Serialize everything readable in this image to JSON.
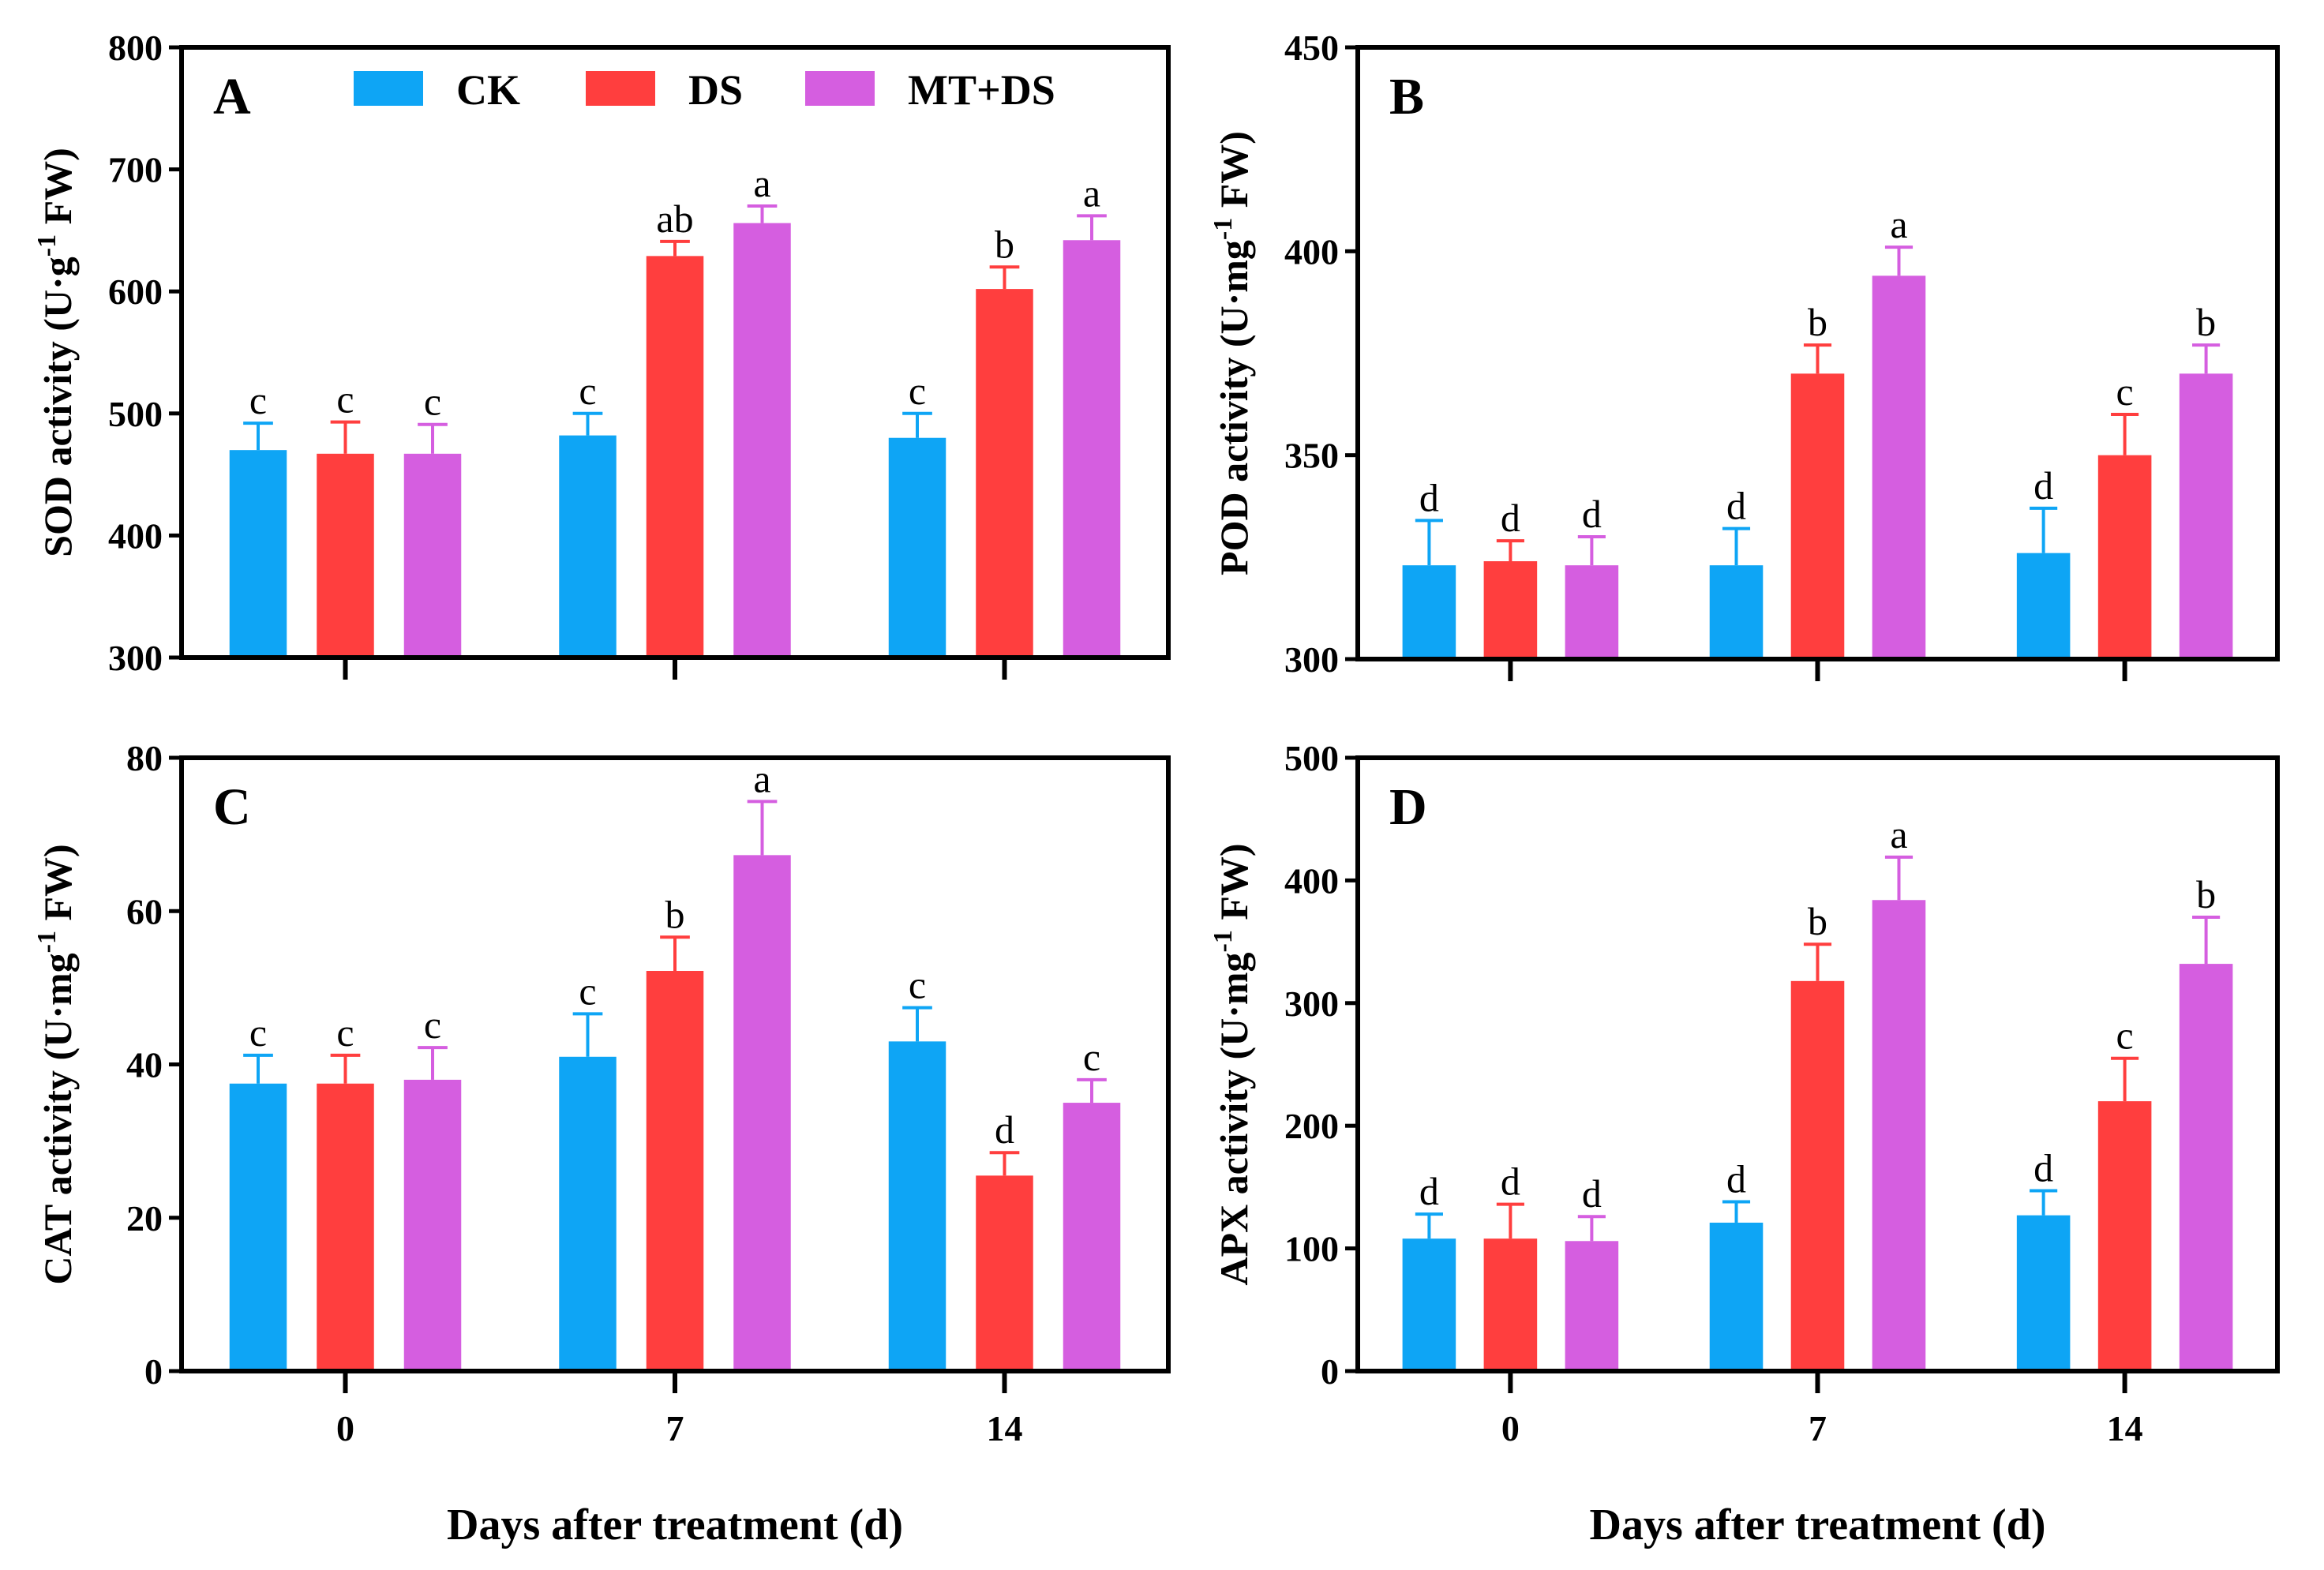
{
  "chart_data": [
    {
      "panel": "A",
      "type": "bar",
      "categories": [
        "0",
        "7",
        "14"
      ],
      "xlabel": "Days after treatment (d)",
      "ylabel": {
        "prefix": "SOD activity (U·g",
        "sup": "-1",
        "suffix": " FW)"
      },
      "ylim": [
        300,
        800
      ],
      "yticks": [
        300,
        400,
        500,
        600,
        700,
        800
      ],
      "series": [
        {
          "name": "CK",
          "values": [
            470,
            482,
            480
          ],
          "errors": [
            22,
            18,
            20
          ],
          "labels": [
            "c",
            "c",
            "c"
          ]
        },
        {
          "name": "DS",
          "values": [
            467,
            629,
            602
          ],
          "errors": [
            26,
            12,
            18
          ],
          "labels": [
            "c",
            "ab",
            "b"
          ]
        },
        {
          "name": "MT+DS",
          "values": [
            467,
            656,
            642
          ],
          "errors": [
            24,
            14,
            20
          ],
          "labels": [
            "c",
            "a",
            "a"
          ]
        }
      ]
    },
    {
      "panel": "B",
      "type": "bar",
      "categories": [
        "0",
        "7",
        "14"
      ],
      "xlabel": "Days after treatment (d)",
      "ylabel": {
        "prefix": "POD activity (U·mg",
        "sup": "-1",
        "suffix": " FW)"
      },
      "ylim": [
        300,
        450
      ],
      "yticks": [
        300,
        350,
        400,
        450
      ],
      "series": [
        {
          "name": "CK",
          "values": [
            323,
            323,
            326
          ],
          "errors": [
            11,
            9,
            11
          ],
          "labels": [
            "d",
            "d",
            "d"
          ]
        },
        {
          "name": "DS",
          "values": [
            324,
            370,
            350
          ],
          "errors": [
            5,
            7,
            10
          ],
          "labels": [
            "d",
            "b",
            "c"
          ]
        },
        {
          "name": "MT+DS",
          "values": [
            323,
            394,
            370
          ],
          "errors": [
            7,
            7,
            7
          ],
          "labels": [
            "d",
            "a",
            "b"
          ]
        }
      ]
    },
    {
      "panel": "C",
      "type": "bar",
      "categories": [
        "0",
        "7",
        "14"
      ],
      "xlabel": "Days after treatment (d)",
      "ylabel": {
        "prefix": "CAT activity (U·mg",
        "sup": "-1",
        "suffix": " FW)"
      },
      "ylim": [
        0,
        80
      ],
      "yticks": [
        0,
        20,
        40,
        60,
        80
      ],
      "series": [
        {
          "name": "CK",
          "values": [
            37.5,
            41,
            43
          ],
          "errors": [
            3.7,
            5.6,
            4.4
          ],
          "labels": [
            "c",
            "c",
            "c"
          ]
        },
        {
          "name": "DS",
          "values": [
            37.5,
            52.2,
            25.5
          ],
          "errors": [
            3.7,
            4.4,
            3.0
          ],
          "labels": [
            "c",
            "b",
            "d"
          ]
        },
        {
          "name": "MT+DS",
          "values": [
            38,
            67.3,
            35
          ],
          "errors": [
            4.2,
            7.0,
            3.0
          ],
          "labels": [
            "c",
            "a",
            "c"
          ]
        }
      ]
    },
    {
      "panel": "D",
      "type": "bar",
      "categories": [
        "0",
        "7",
        "14"
      ],
      "xlabel": "Days after treatment (d)",
      "ylabel": {
        "prefix": "APX activity (U·mg",
        "sup": "-1",
        "suffix": " FW)"
      },
      "ylim": [
        0,
        500
      ],
      "yticks": [
        0,
        100,
        200,
        300,
        400,
        500
      ],
      "series": [
        {
          "name": "CK",
          "values": [
            108,
            121,
            127
          ],
          "errors": [
            20,
            17,
            20
          ],
          "labels": [
            "d",
            "d",
            "d"
          ]
        },
        {
          "name": "DS",
          "values": [
            108,
            318,
            220
          ],
          "errors": [
            28,
            30,
            35
          ],
          "labels": [
            "d",
            "b",
            "c"
          ]
        },
        {
          "name": "MT+DS",
          "values": [
            106,
            384,
            332
          ],
          "errors": [
            20,
            35,
            38
          ],
          "labels": [
            "d",
            "a",
            "b"
          ]
        }
      ]
    }
  ],
  "legend": [
    {
      "name": "CK",
      "color": "#0ea5f5"
    },
    {
      "name": "DS",
      "color": "#ff3e3e"
    },
    {
      "name": "MT+DS",
      "color": "#d55ee0"
    }
  ]
}
